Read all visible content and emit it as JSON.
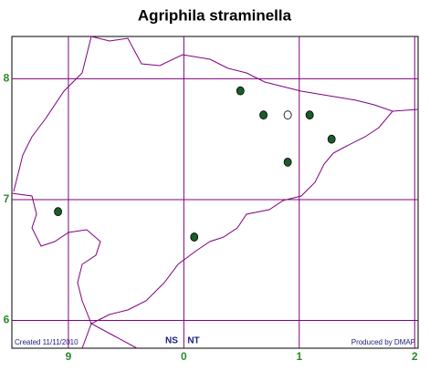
{
  "chart_data": {
    "type": "scatter",
    "title": "Agriphila straminella",
    "footer_left": "Created 11/11/2010",
    "footer_right": "Produced by DMAP",
    "square_labels": [
      "NS",
      "NT"
    ],
    "xlim": [
      -0.49,
      3.03
    ],
    "ylim": [
      5.77,
      8.35
    ],
    "xticks": [
      {
        "value": 0,
        "label": "9"
      },
      {
        "value": 1,
        "label": "0"
      },
      {
        "value": 2,
        "label": "1"
      },
      {
        "value": 3,
        "label": "2"
      }
    ],
    "yticks": [
      6,
      7,
      8
    ],
    "grid": true,
    "grid_color": "#800080",
    "series": [
      {
        "color": "#1a5c2a",
        "x": [
          1.49,
          1.69,
          2.09,
          2.28,
          1.9,
          1.09,
          -0.09
        ],
        "values": [
          7.9,
          7.7,
          7.7,
          7.5,
          7.31,
          6.69,
          6.9
        ]
      },
      {
        "color": "#ffffff",
        "x": [
          1.9
        ],
        "values": [
          7.7
        ]
      }
    ]
  }
}
